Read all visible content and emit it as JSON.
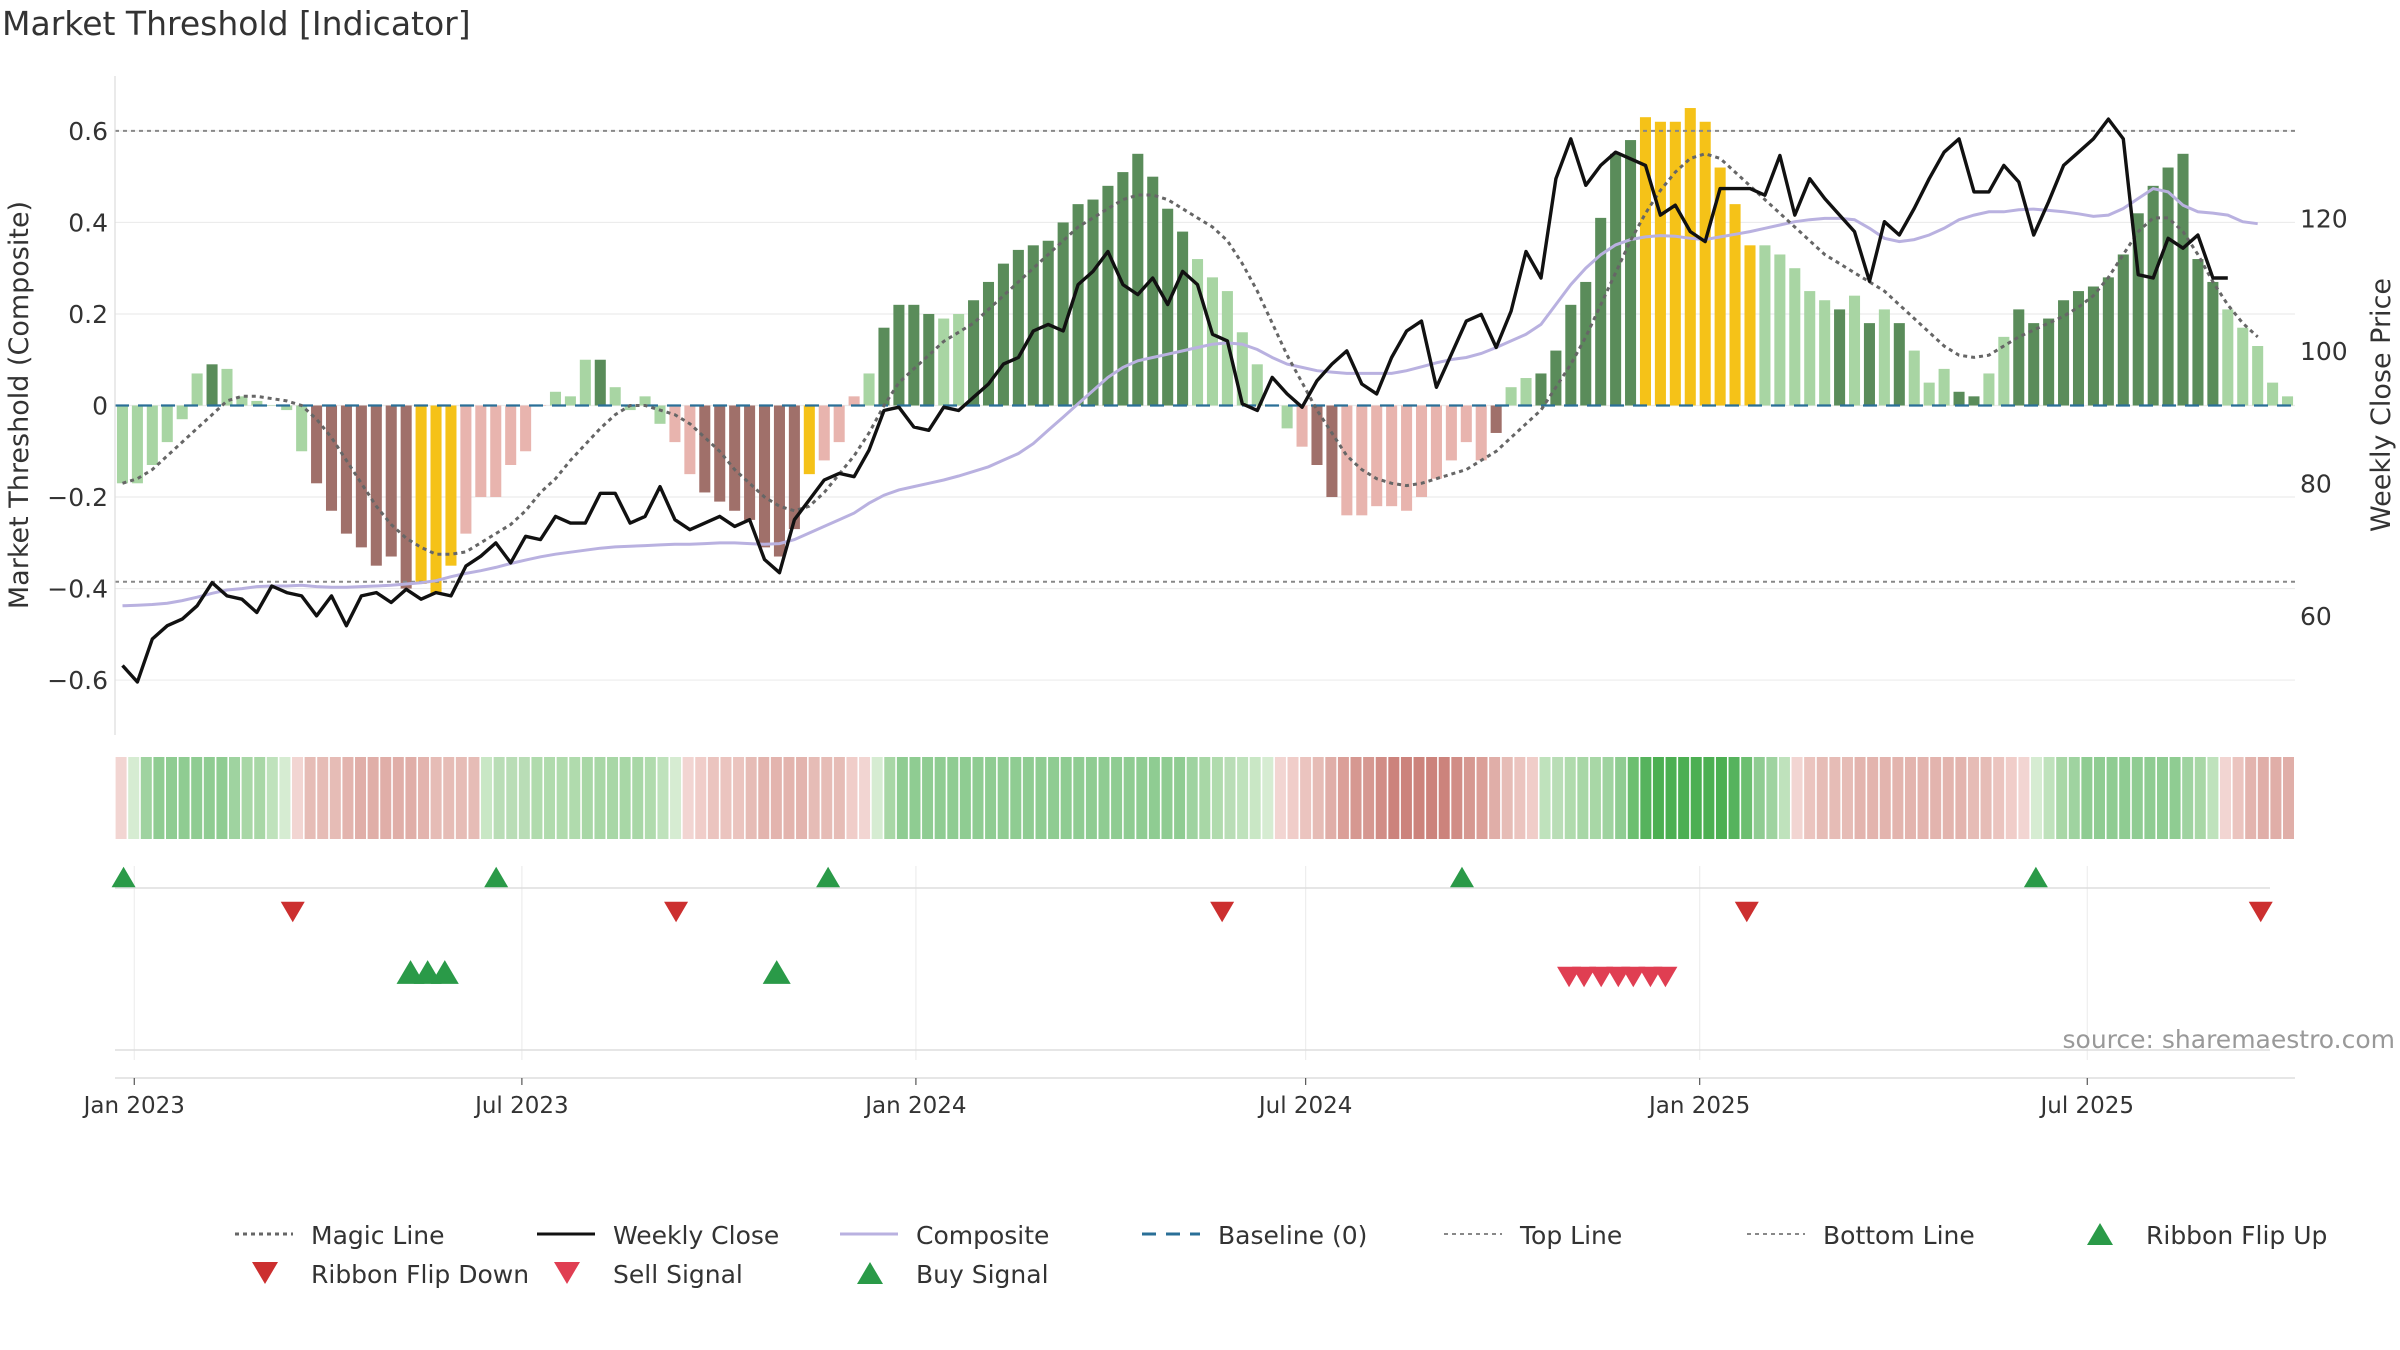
{
  "chart_data": {
    "type": "bar",
    "title": "Market Threshold [Indicator]",
    "ylabel": "Market Threshold (Composite)",
    "y2label": "Weekly Close Price",
    "source": "source: sharemaestro.com",
    "ylim": [
      -0.72,
      0.72
    ],
    "y2lim": [
      42,
      141.5
    ],
    "yticks": [
      {
        "v": 0.6,
        "label": "0.6"
      },
      {
        "v": 0.4,
        "label": "0.4"
      },
      {
        "v": 0.2,
        "label": "0.2"
      },
      {
        "v": 0,
        "label": "0"
      },
      {
        "v": -0.2,
        "label": "−0.2"
      },
      {
        "v": -0.4,
        "label": "−0.4"
      },
      {
        "v": -0.6,
        "label": "−0.6"
      }
    ],
    "y2ticks": [
      {
        "v": 120,
        "label": "120"
      },
      {
        "v": 100,
        "label": "100"
      },
      {
        "v": 80,
        "label": "80"
      },
      {
        "v": 60,
        "label": "60"
      }
    ],
    "x_start": "2022-12-23",
    "x_end": "2025-10-06",
    "xticks": [
      {
        "date": "2023-01-01",
        "label": "Jan 2023"
      },
      {
        "date": "2023-07-01",
        "label": "Jul 2023"
      },
      {
        "date": "2024-01-01",
        "label": "Jan 2024"
      },
      {
        "date": "2024-07-01",
        "label": "Jul 2024"
      },
      {
        "date": "2025-01-01",
        "label": "Jan 2025"
      },
      {
        "date": "2025-07-01",
        "label": "Jul 2025"
      }
    ],
    "reference_lines": {
      "top_line": 0.6,
      "bottom_line": -0.385,
      "baseline": 0
    },
    "colors": {
      "dark_green": "#5a8c5a",
      "light_green": "#a8d5a3",
      "dark_red": "#a0706a",
      "light_red": "#e8b4ae",
      "yellow": "#f5c218",
      "weekly_close": "#111111",
      "composite": "#b9b1e0",
      "magic_line": "#666666",
      "baseline": "#2a6f97",
      "flip_up": "#2a9a48",
      "flip_down": "#cc2f2f",
      "sell": "#e03e52",
      "buy": "#2a9a48"
    },
    "bar_colors_key": {
      "G": "dark_green",
      "g": "light_green",
      "R": "dark_red",
      "r": "light_red",
      "Y": "yellow"
    },
    "composite_bars": [
      -0.17,
      -0.17,
      -0.13,
      -0.08,
      -0.03,
      0.07,
      0.09,
      0.08,
      0.02,
      0.01,
      0.0,
      -0.01,
      -0.1,
      -0.17,
      -0.23,
      -0.28,
      -0.31,
      -0.35,
      -0.33,
      -0.4,
      -0.39,
      -0.41,
      -0.35,
      -0.28,
      -0.2,
      -0.2,
      -0.13,
      -0.1,
      0.0,
      0.03,
      0.02,
      0.1,
      0.1,
      0.04,
      -0.01,
      0.02,
      -0.04,
      -0.08,
      -0.15,
      -0.19,
      -0.21,
      -0.23,
      -0.25,
      -0.31,
      -0.33,
      -0.27,
      -0.15,
      -0.12,
      -0.08,
      0.02,
      0.07,
      0.17,
      0.22,
      0.22,
      0.2,
      0.19,
      0.2,
      0.23,
      0.27,
      0.31,
      0.34,
      0.35,
      0.36,
      0.4,
      0.44,
      0.45,
      0.48,
      0.51,
      0.55,
      0.5,
      0.43,
      0.38,
      0.32,
      0.28,
      0.25,
      0.16,
      0.09,
      0.0,
      -0.05,
      -0.09,
      -0.13,
      -0.2,
      -0.24,
      -0.24,
      -0.22,
      -0.22,
      -0.23,
      -0.2,
      -0.16,
      -0.12,
      -0.08,
      -0.12,
      -0.06,
      0.04,
      0.06,
      0.07,
      0.12,
      0.22,
      0.27,
      0.41,
      0.55,
      0.58,
      0.63,
      0.62,
      0.62,
      0.65,
      0.62,
      0.52,
      0.44,
      0.35,
      0.35,
      0.33,
      0.3,
      0.25,
      0.23,
      0.21,
      0.24,
      0.18,
      0.21,
      0.18,
      0.12,
      0.05,
      0.08,
      0.03,
      0.02,
      0.07,
      0.15,
      0.21,
      0.18,
      0.19,
      0.23,
      0.25,
      0.26,
      0.28,
      0.33,
      0.42,
      0.48,
      0.52,
      0.55,
      0.32,
      0.27,
      0.21,
      0.17,
      0.13,
      0.05,
      0.02
    ],
    "bar_color_codes": "ggggggGggggggRRRRRRRYYYrrrrrrgggGggggrrRRRRRRRYrrrgGGGGggGGGGGGGGGGGGGGGgggggggrRRrrrrrrrrrrRggGGGGGGGYYYYYYYYgggggGgGgGgggGGggGGGGGGGGGGGGGGgggggg",
    "weekly_close": [
      52.5,
      50.0,
      56.5,
      58.5,
      59.5,
      61.5,
      65.0,
      63.0,
      62.5,
      60.5,
      64.5,
      63.5,
      63.0,
      60.0,
      63.0,
      58.5,
      63.0,
      63.5,
      62.0,
      64.0,
      62.5,
      63.5,
      63.0,
      67.5,
      69.0,
      71.0,
      68.0,
      72.0,
      71.5,
      75.0,
      74.0,
      74.0,
      78.5,
      78.5,
      74.0,
      75.0,
      79.5,
      74.5,
      73.0,
      74.0,
      75.0,
      73.5,
      74.5,
      68.5,
      66.5,
      74.5,
      77.5,
      80.5,
      81.5,
      81.0,
      85.0,
      91.0,
      91.5,
      88.5,
      88.0,
      91.5,
      91.0,
      93.0,
      95.0,
      98.0,
      99.0,
      103.0,
      104.0,
      103.0,
      110.0,
      112.0,
      115.0,
      110.0,
      108.5,
      111.0,
      107.0,
      112.0,
      110.0,
      102.5,
      101.5,
      92.0,
      91.0,
      96.0,
      93.5,
      91.5,
      95.5,
      98.0,
      100.0,
      95.0,
      93.5,
      99.0,
      103.0,
      104.5,
      94.5,
      99.5,
      104.5,
      105.5,
      100.5,
      106.0,
      115.0,
      111.0,
      126.0,
      132.0,
      125.0,
      128.0,
      130.0,
      129.0,
      128.0,
      120.5,
      122.0,
      118.0,
      116.5,
      124.5,
      124.5,
      124.5,
      123.5,
      129.5,
      120.5,
      126.0,
      123.0,
      120.5,
      118.0,
      110.5,
      119.5,
      117.5,
      121.5,
      126.0,
      130.0,
      132.0,
      124.0,
      124.0,
      128.0,
      125.5,
      117.5,
      122.5,
      128.0,
      130.0,
      132.0,
      135.0,
      132.0,
      111.5,
      111.0,
      117.0,
      115.5,
      117.5,
      111.0,
      111.0
    ],
    "composite_price": [
      61.5,
      61.6,
      61.7,
      61.9,
      62.3,
      62.8,
      63.4,
      63.9,
      64.1,
      64.4,
      64.5,
      64.5,
      64.6,
      64.4,
      64.3,
      64.3,
      64.4,
      64.5,
      64.6,
      64.8,
      65.0,
      65.3,
      65.9,
      66.4,
      66.8,
      67.3,
      67.9,
      68.4,
      68.9,
      69.3,
      69.6,
      69.9,
      70.2,
      70.4,
      70.5,
      70.6,
      70.7,
      70.8,
      70.8,
      70.9,
      71.0,
      71.0,
      70.9,
      70.8,
      70.9,
      71.5,
      72.5,
      73.5,
      74.5,
      75.5,
      77.0,
      78.2,
      79.0,
      79.5,
      80.0,
      80.5,
      81.1,
      81.8,
      82.5,
      83.5,
      84.5,
      86.0,
      88.0,
      90.0,
      92.0,
      94.0,
      96.0,
      97.5,
      98.5,
      99.0,
      99.5,
      100.0,
      100.5,
      101.0,
      101.2,
      101.0,
      100.2,
      99.0,
      98.0,
      97.5,
      97.0,
      96.8,
      96.6,
      96.6,
      96.6,
      96.6,
      97.0,
      97.6,
      98.2,
      98.7,
      99.0,
      99.6,
      100.5,
      101.5,
      102.5,
      104.0,
      107.0,
      110.0,
      112.5,
      114.5,
      116.0,
      116.8,
      117.2,
      117.4,
      117.3,
      117.0,
      116.8,
      117.2,
      117.6,
      118.0,
      118.5,
      119.0,
      119.5,
      119.8,
      120.0,
      120.0,
      119.8,
      118.5,
      117.0,
      116.5,
      116.8,
      117.5,
      118.5,
      119.8,
      120.5,
      121.0,
      121.0,
      121.3,
      121.4,
      121.2,
      121.0,
      120.7,
      120.3,
      120.5,
      121.5,
      123.0,
      124.5,
      124.0,
      122.0,
      121.0,
      120.8,
      120.5,
      119.5,
      119.2
    ],
    "magic_line": [
      -0.17,
      -0.16,
      -0.14,
      -0.11,
      -0.08,
      -0.05,
      -0.02,
      0.01,
      0.02,
      0.02,
      0.015,
      0.01,
      0.0,
      -0.03,
      -0.07,
      -0.12,
      -0.17,
      -0.22,
      -0.26,
      -0.29,
      -0.31,
      -0.325,
      -0.325,
      -0.32,
      -0.3,
      -0.28,
      -0.26,
      -0.23,
      -0.19,
      -0.16,
      -0.12,
      -0.085,
      -0.05,
      -0.02,
      0.0,
      0.0,
      -0.01,
      -0.02,
      -0.04,
      -0.07,
      -0.1,
      -0.14,
      -0.17,
      -0.2,
      -0.22,
      -0.23,
      -0.22,
      -0.19,
      -0.15,
      -0.11,
      -0.06,
      0.0,
      0.05,
      0.08,
      0.11,
      0.14,
      0.16,
      0.18,
      0.21,
      0.24,
      0.27,
      0.3,
      0.33,
      0.36,
      0.39,
      0.41,
      0.43,
      0.45,
      0.46,
      0.46,
      0.45,
      0.43,
      0.41,
      0.39,
      0.36,
      0.31,
      0.25,
      0.18,
      0.11,
      0.05,
      -0.01,
      -0.06,
      -0.11,
      -0.14,
      -0.16,
      -0.17,
      -0.175,
      -0.17,
      -0.16,
      -0.15,
      -0.14,
      -0.12,
      -0.1,
      -0.07,
      -0.04,
      -0.01,
      0.04,
      0.09,
      0.15,
      0.22,
      0.29,
      0.36,
      0.42,
      0.47,
      0.51,
      0.54,
      0.55,
      0.54,
      0.51,
      0.48,
      0.45,
      0.42,
      0.39,
      0.36,
      0.33,
      0.31,
      0.29,
      0.27,
      0.25,
      0.22,
      0.19,
      0.16,
      0.13,
      0.11,
      0.105,
      0.11,
      0.13,
      0.15,
      0.165,
      0.18,
      0.195,
      0.215,
      0.24,
      0.28,
      0.33,
      0.38,
      0.41,
      0.41,
      0.38,
      0.33,
      0.27,
      0.22,
      0.18,
      0.15
    ],
    "ribbon": [
      "#f2d5d2",
      "#d6ecd2",
      "#9fd3a0",
      "#8fcc92",
      "#8fcc92",
      "#8fcc92",
      "#8fcc92",
      "#8fcc92",
      "#8fcc92",
      "#9fd3a0",
      "#a8d7a6",
      "#a8d7a6",
      "#bfe2bc",
      "#d6ecd2",
      "#f2d5d2",
      "#e6bcb6",
      "#e6bcb6",
      "#e6bcb6",
      "#e3b4ae",
      "#e0aea8",
      "#e0aea8",
      "#e0aea8",
      "#e0aea8",
      "#e0aea8",
      "#e3b4ae",
      "#e6bcb6",
      "#e6bcb6",
      "#e6bcb6",
      "#e6bcb6",
      "#c9e7c5",
      "#b9ddb6",
      "#b9ddb6",
      "#b9ddb6",
      "#b0dbad",
      "#b0dbad",
      "#b0dbad",
      "#b0dbad",
      "#a8d7a6",
      "#a8d7a6",
      "#a8d7a6",
      "#a8d7a6",
      "#a8d7a6",
      "#b0dbad",
      "#bfe2bc",
      "#d6ecd2",
      "#f2d5d2",
      "#f0cdc9",
      "#ebc4bf",
      "#ebc4bf",
      "#ebc4bf",
      "#e6bcb6",
      "#e3b4ae",
      "#e3b4ae",
      "#e3b4ae",
      "#e3b4ae",
      "#e6bcb6",
      "#e6bcb6",
      "#e6bcb6",
      "#f0cdc9",
      "#f2d5d2",
      "#d6ecd2",
      "#a8d7a6",
      "#8fcc92",
      "#8fcc92",
      "#8fcc92",
      "#8fcc92",
      "#8fcc92",
      "#8fcc92",
      "#8fcc92",
      "#8fcc92",
      "#8fcc92",
      "#8fcc92",
      "#8fcc92",
      "#8fcc92",
      "#8fcc92",
      "#8fcc92",
      "#8fcc92",
      "#8fcc92",
      "#8fcc92",
      "#8fcc92",
      "#8fcc92",
      "#8fcc92",
      "#8fcc92",
      "#8fcc92",
      "#8fcc92",
      "#9fd3a0",
      "#a8d7a6",
      "#b0dbad",
      "#b9ddb6",
      "#bfe2bc",
      "#c9e7c5",
      "#d6ecd2",
      "#f2d5d2",
      "#f0cdc9",
      "#ebc4bf",
      "#e6bcb6",
      "#e0aea8",
      "#db9f98",
      "#d69891",
      "#d69891",
      "#d18d86",
      "#cc837c",
      "#cc837c",
      "#cc837c",
      "#cc837c",
      "#cc837c",
      "#d18d86",
      "#d69891",
      "#db9f98",
      "#e0aea8",
      "#e6bcb6",
      "#ebc4bf",
      "#f0cdc9",
      "#bfe2bc",
      "#b9ddb6",
      "#b0dbad",
      "#a8d7a6",
      "#a8d7a6",
      "#9fd3a0",
      "#8fcc92",
      "#6cbf70",
      "#56b35d",
      "#4caf52",
      "#4caf52",
      "#4caf52",
      "#4caf52",
      "#4caf52",
      "#4caf52",
      "#56b35d",
      "#6cbf70",
      "#8fcc92",
      "#9fd3a0",
      "#bfe2bc",
      "#f2d5d2",
      "#ebc4bf",
      "#e6bcb6",
      "#e6bcb6",
      "#e6bcb6",
      "#e3b4ae",
      "#e3b4ae",
      "#e3b4ae",
      "#e3b4ae",
      "#e3b4ae",
      "#e3b4ae",
      "#e3b4ae",
      "#e3b4ae",
      "#e3b4ae",
      "#e6bcb6",
      "#e6bcb6",
      "#ebc4bf",
      "#f0cdc9",
      "#f2d5d2",
      "#d6ecd2",
      "#bfe2bc",
      "#a8d7a6",
      "#9fd3a0",
      "#8fcc92",
      "#8fcc92",
      "#8fcc92",
      "#8fcc92",
      "#8fcc92",
      "#8fcc92",
      "#8fcc92",
      "#8fcc92",
      "#9fd3a0",
      "#a8d7a6",
      "#bfe2bc",
      "#f2d5d2",
      "#ebc4bf",
      "#e3b4ae",
      "#e0aea8",
      "#e0aea8",
      "#e0aea8"
    ],
    "ribbon_flip_up": [
      "2022-12-27",
      "2023-06-19",
      "2023-11-21",
      "2024-09-12",
      "2025-06-07"
    ],
    "ribbon_flip_down": [
      "2023-03-16",
      "2023-09-11",
      "2024-05-23",
      "2025-01-23",
      "2025-09-20"
    ],
    "buy_signals": [
      "2023-05-10",
      "2023-05-18",
      "2023-05-26",
      "2023-10-28"
    ],
    "sell_signals": [
      "2024-11-01",
      "2024-11-08",
      "2024-11-16",
      "2024-11-24",
      "2024-12-01",
      "2024-12-09",
      "2024-12-16"
    ],
    "legend": [
      {
        "label": "Magic Line",
        "style": "dotted",
        "color": "#666666"
      },
      {
        "label": "Weekly Close",
        "style": "solid",
        "color": "#111111"
      },
      {
        "label": "Composite",
        "style": "solid",
        "color": "#b9b1e0"
      },
      {
        "label": "Baseline (0)",
        "style": "dashed",
        "color": "#2a6f97"
      },
      {
        "label": "Top Line",
        "style": "dotted-thin",
        "color": "#888888"
      },
      {
        "label": "Bottom Line",
        "style": "dotted-thin",
        "color": "#888888"
      },
      {
        "label": "Ribbon Flip Up",
        "style": "triangle-up",
        "color": "#2a9a48"
      },
      {
        "label": "Ribbon Flip Down",
        "style": "triangle-down",
        "color": "#cc2f2f"
      },
      {
        "label": "Sell Signal",
        "style": "triangle-down",
        "color": "#e03e52"
      },
      {
        "label": "Buy Signal",
        "style": "triangle-up",
        "color": "#2a9a48"
      }
    ],
    "legend_placement": "bottom"
  }
}
